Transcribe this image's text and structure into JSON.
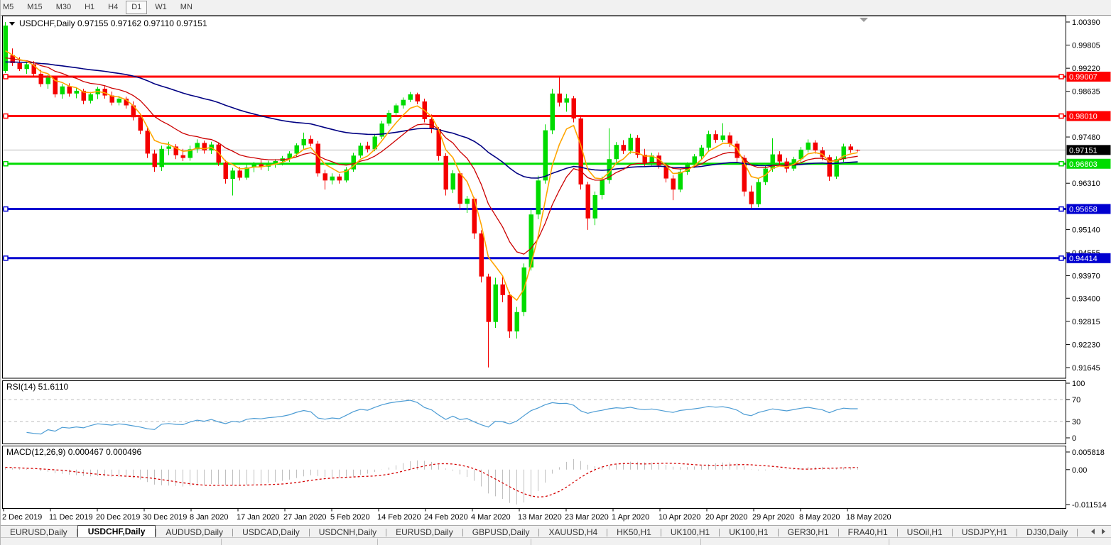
{
  "toolbar": {
    "timeframes": [
      "M5",
      "M15",
      "M30",
      "H1",
      "H4",
      "D1",
      "W1",
      "MN"
    ],
    "active_timeframe": "D1"
  },
  "chart": {
    "title_symbol": "USDCHF,Daily",
    "title_text": "USDCHF,Daily  0.97155 0.97162 0.97110 0.97151",
    "ohlc": {
      "open": "0.97155",
      "high": "0.97162",
      "low": "0.97110",
      "close": "0.97151"
    },
    "current_price": {
      "value": 0.97151,
      "label": "0.97151",
      "tag_color": "#000000",
      "line_color": "#b9b9b9"
    },
    "price_axis_labels": [
      {
        "v": 1.0039,
        "t": "1.00390"
      },
      {
        "v": 0.99805,
        "t": "0.99805"
      },
      {
        "v": 0.9922,
        "t": "0.99220"
      },
      {
        "v": 0.98635,
        "t": "0.98635"
      },
      {
        "v": 0.9748,
        "t": "0.97480"
      },
      {
        "v": 0.9631,
        "t": "0.96310"
      },
      {
        "v": 0.9514,
        "t": "0.95140"
      },
      {
        "v": 0.94555,
        "t": "0.94555"
      },
      {
        "v": 0.9397,
        "t": "0.93970"
      },
      {
        "v": 0.934,
        "t": "0.93400"
      },
      {
        "v": 0.92815,
        "t": "0.92815"
      },
      {
        "v": 0.9223,
        "t": "0.92230"
      },
      {
        "v": 0.91645,
        "t": "0.91645"
      }
    ],
    "hlines": [
      {
        "price": 0.99007,
        "label": "0.99007",
        "color": "#ff0000"
      },
      {
        "price": 0.9801,
        "label": "0.98010",
        "color": "#ff0000"
      },
      {
        "price": 0.96803,
        "label": "0.96803",
        "color": "#00dc00"
      },
      {
        "price": 0.95658,
        "label": "0.95658",
        "color": "#0000d0"
      },
      {
        "price": 0.94414,
        "label": "0.94414",
        "color": "#0000d0"
      }
    ],
    "date_labels": [
      "2 Dec 2019",
      "11 Dec 2019",
      "20 Dec 2019",
      "30 Dec 2019",
      "8 Jan 2020",
      "17 Jan 2020",
      "27 Jan 2020",
      "5 Feb 2020",
      "14 Feb 2020",
      "24 Feb 2020",
      "4 Mar 2020",
      "13 Mar 2020",
      "23 Mar 2020",
      "1 Apr 2020",
      "10 Apr 2020",
      "20 Apr 2020",
      "29 Apr 2020",
      "8 May 2020",
      "18 May 2020"
    ]
  },
  "rsi_panel": {
    "title": "RSI(14) 51.6110",
    "name": "RSI",
    "period": 14,
    "value": "51.6110",
    "axis_labels": [
      {
        "v": 100,
        "t": "100"
      },
      {
        "v": 70,
        "t": "70"
      },
      {
        "v": 30,
        "t": "30"
      },
      {
        "v": 0,
        "t": "0"
      }
    ],
    "levels": [
      70,
      30
    ],
    "line_color": "#4c9cd4"
  },
  "macd_panel": {
    "title": "MACD(12,26,9) 0.000467 0.000496",
    "macd_value": "0.000467",
    "signal_value": "0.000496",
    "axis_labels": [
      {
        "v": 0.005818,
        "t": "0.005818"
      },
      {
        "v": 0,
        "t": "0.00"
      },
      {
        "v": -0.011514,
        "t": "-0.011514"
      }
    ],
    "histogram_color": "#c0c0c0",
    "signal_color": "#d40000"
  },
  "tabs": {
    "items": [
      "EURUSD,Daily",
      "USDCHF,Daily",
      "AUDUSD,Daily",
      "USDCAD,Daily",
      "USDCNH,Daily",
      "EURUSD,Daily",
      "GBPUSD,Daily",
      "XAUUSD,H4",
      "HK50,H1",
      "UK100,H1",
      "UK100,H1",
      "GER30,H1",
      "FRA40,H1",
      "USOil,H1",
      "USDJPY,H1",
      "DJ30,Daily"
    ],
    "active_index": 1
  },
  "chart_data": {
    "type": "candlestick",
    "symbol": "USDCHF",
    "timeframe": "Daily",
    "up_color": "#00db00",
    "down_color": "#f40000",
    "moving_averages": [
      {
        "name": "fast",
        "period": 5,
        "color": "#ffa500"
      },
      {
        "name": "medium",
        "period": 13,
        "color": "#cc0000"
      },
      {
        "name": "slow",
        "period": 55,
        "color": "#000082"
      }
    ],
    "candles": [
      [
        0.9915,
        1.0039,
        0.991,
        1.003
      ],
      [
        0.9955,
        0.9972,
        0.9928,
        0.9935
      ],
      [
        0.9935,
        0.995,
        0.9915,
        0.992
      ],
      [
        0.992,
        0.9938,
        0.9908,
        0.9932
      ],
      [
        0.9932,
        0.994,
        0.99,
        0.9908
      ],
      [
        0.9908,
        0.9918,
        0.9875,
        0.9882
      ],
      [
        0.9882,
        0.9905,
        0.987,
        0.9898
      ],
      [
        0.9898,
        0.9902,
        0.9848,
        0.9856
      ],
      [
        0.9856,
        0.9882,
        0.9845,
        0.9876
      ],
      [
        0.9876,
        0.9884,
        0.985,
        0.9858
      ],
      [
        0.9858,
        0.9874,
        0.9846,
        0.9865
      ],
      [
        0.9865,
        0.987,
        0.9831,
        0.984
      ],
      [
        0.984,
        0.9862,
        0.9833,
        0.9856
      ],
      [
        0.9856,
        0.9875,
        0.9844,
        0.987
      ],
      [
        0.987,
        0.9878,
        0.9845,
        0.9853
      ],
      [
        0.9853,
        0.9863,
        0.9828,
        0.9835
      ],
      [
        0.9835,
        0.9852,
        0.9828,
        0.9845
      ],
      [
        0.9845,
        0.985,
        0.982,
        0.9828
      ],
      [
        0.9828,
        0.9838,
        0.979,
        0.9798
      ],
      [
        0.9798,
        0.9805,
        0.9755,
        0.9764
      ],
      [
        0.9764,
        0.9772,
        0.9695,
        0.9706
      ],
      [
        0.9706,
        0.9716,
        0.966,
        0.9672
      ],
      [
        0.9672,
        0.9726,
        0.9662,
        0.9718
      ],
      [
        0.9718,
        0.9736,
        0.9702,
        0.9724
      ],
      [
        0.9724,
        0.973,
        0.9692,
        0.9702
      ],
      [
        0.9702,
        0.9718,
        0.9687,
        0.9695
      ],
      [
        0.9695,
        0.9726,
        0.9688,
        0.9717
      ],
      [
        0.9717,
        0.9742,
        0.9708,
        0.9733
      ],
      [
        0.9733,
        0.9739,
        0.9706,
        0.9714
      ],
      [
        0.9714,
        0.9736,
        0.9705,
        0.9729
      ],
      [
        0.9729,
        0.9732,
        0.9675,
        0.9683
      ],
      [
        0.9683,
        0.969,
        0.963,
        0.9642
      ],
      [
        0.9642,
        0.967,
        0.96,
        0.9663
      ],
      [
        0.9663,
        0.9672,
        0.9638,
        0.9645
      ],
      [
        0.9645,
        0.9678,
        0.964,
        0.9671
      ],
      [
        0.9671,
        0.9685,
        0.9659,
        0.9679
      ],
      [
        0.9679,
        0.969,
        0.9665,
        0.9673
      ],
      [
        0.9673,
        0.9688,
        0.9662,
        0.9682
      ],
      [
        0.9682,
        0.9692,
        0.967,
        0.9687
      ],
      [
        0.9687,
        0.97,
        0.9676,
        0.9694
      ],
      [
        0.9694,
        0.9712,
        0.9685,
        0.9706
      ],
      [
        0.9706,
        0.9732,
        0.9698,
        0.9727
      ],
      [
        0.9727,
        0.9759,
        0.9718,
        0.9743
      ],
      [
        0.9743,
        0.9752,
        0.9724,
        0.9731
      ],
      [
        0.9731,
        0.9738,
        0.9648,
        0.9656
      ],
      [
        0.9656,
        0.9665,
        0.9615,
        0.9638
      ],
      [
        0.9638,
        0.9656,
        0.9628,
        0.9648
      ],
      [
        0.9648,
        0.9655,
        0.963,
        0.9638
      ],
      [
        0.9638,
        0.9672,
        0.9633,
        0.9666
      ],
      [
        0.9666,
        0.9708,
        0.966,
        0.9701
      ],
      [
        0.9701,
        0.9733,
        0.9695,
        0.9726
      ],
      [
        0.9726,
        0.9736,
        0.9709,
        0.9717
      ],
      [
        0.9717,
        0.9756,
        0.9712,
        0.9749
      ],
      [
        0.9749,
        0.9789,
        0.9743,
        0.9782
      ],
      [
        0.9782,
        0.9816,
        0.9776,
        0.9809
      ],
      [
        0.9809,
        0.9833,
        0.9802,
        0.9828
      ],
      [
        0.9828,
        0.9848,
        0.982,
        0.9842
      ],
      [
        0.9842,
        0.9862,
        0.9836,
        0.9856
      ],
      [
        0.9856,
        0.986,
        0.9831,
        0.9838
      ],
      [
        0.9838,
        0.9845,
        0.9785,
        0.9793
      ],
      [
        0.9793,
        0.9805,
        0.9758,
        0.9768
      ],
      [
        0.9768,
        0.9773,
        0.9688,
        0.97
      ],
      [
        0.97,
        0.9707,
        0.96,
        0.9615
      ],
      [
        0.9615,
        0.9664,
        0.9606,
        0.9656
      ],
      [
        0.9656,
        0.9661,
        0.9564,
        0.9579
      ],
      [
        0.9579,
        0.9599,
        0.9556,
        0.9592
      ],
      [
        0.9592,
        0.9596,
        0.949,
        0.9504
      ],
      [
        0.9504,
        0.9512,
        0.938,
        0.9395
      ],
      [
        0.9395,
        0.9402,
        0.9165,
        0.928
      ],
      [
        0.928,
        0.9392,
        0.9265,
        0.9375
      ],
      [
        0.9375,
        0.9398,
        0.933,
        0.9348
      ],
      [
        0.9348,
        0.9356,
        0.924,
        0.9256
      ],
      [
        0.9256,
        0.9318,
        0.9238,
        0.9305
      ],
      [
        0.9305,
        0.9428,
        0.9295,
        0.9418
      ],
      [
        0.9418,
        0.9565,
        0.941,
        0.9552
      ],
      [
        0.9552,
        0.965,
        0.954,
        0.9638
      ],
      [
        0.9638,
        0.978,
        0.963,
        0.9765
      ],
      [
        0.9765,
        0.987,
        0.9755,
        0.9858
      ],
      [
        0.9858,
        0.9901,
        0.9825,
        0.9835
      ],
      [
        0.9835,
        0.9857,
        0.9812,
        0.9846
      ],
      [
        0.9846,
        0.9852,
        0.9785,
        0.9795
      ],
      [
        0.9795,
        0.9801,
        0.9615,
        0.9628
      ],
      [
        0.9628,
        0.9635,
        0.9513,
        0.9542
      ],
      [
        0.9542,
        0.961,
        0.9525,
        0.9601
      ],
      [
        0.9601,
        0.9648,
        0.959,
        0.9639
      ],
      [
        0.9639,
        0.977,
        0.963,
        0.9692
      ],
      [
        0.9692,
        0.9735,
        0.9683,
        0.9728
      ],
      [
        0.9728,
        0.974,
        0.9705,
        0.9713
      ],
      [
        0.9713,
        0.9756,
        0.9706,
        0.9746
      ],
      [
        0.9746,
        0.9753,
        0.9695,
        0.9703
      ],
      [
        0.9703,
        0.9718,
        0.9675,
        0.9683
      ],
      [
        0.9683,
        0.9708,
        0.9676,
        0.9701
      ],
      [
        0.9701,
        0.9709,
        0.9668,
        0.9676
      ],
      [
        0.9676,
        0.9683,
        0.9633,
        0.9643
      ],
      [
        0.9643,
        0.9651,
        0.9588,
        0.9615
      ],
      [
        0.9615,
        0.9668,
        0.9608,
        0.966
      ],
      [
        0.966,
        0.9684,
        0.9652,
        0.9678
      ],
      [
        0.9678,
        0.9705,
        0.967,
        0.9699
      ],
      [
        0.9699,
        0.9728,
        0.9692,
        0.9721
      ],
      [
        0.9721,
        0.9764,
        0.9713,
        0.9755
      ],
      [
        0.9755,
        0.9765,
        0.9733,
        0.9741
      ],
      [
        0.9741,
        0.9783,
        0.9735,
        0.9752
      ],
      [
        0.9752,
        0.976,
        0.9723,
        0.9731
      ],
      [
        0.9731,
        0.9738,
        0.9685,
        0.9695
      ],
      [
        0.9695,
        0.9702,
        0.9598,
        0.961
      ],
      [
        0.961,
        0.9625,
        0.9568,
        0.9578
      ],
      [
        0.9578,
        0.9642,
        0.957,
        0.9634
      ],
      [
        0.9634,
        0.9675,
        0.9626,
        0.9668
      ],
      [
        0.9668,
        0.9745,
        0.966,
        0.9704
      ],
      [
        0.9704,
        0.9712,
        0.9678,
        0.9686
      ],
      [
        0.9686,
        0.9695,
        0.9658,
        0.9668
      ],
      [
        0.9668,
        0.9698,
        0.9662,
        0.9692
      ],
      [
        0.9692,
        0.9723,
        0.9685,
        0.9716
      ],
      [
        0.9716,
        0.9742,
        0.9709,
        0.9734
      ],
      [
        0.9734,
        0.974,
        0.9706,
        0.9714
      ],
      [
        0.9714,
        0.9723,
        0.9689,
        0.9697
      ],
      [
        0.9697,
        0.9703,
        0.9637,
        0.9648
      ],
      [
        0.9648,
        0.9699,
        0.9642,
        0.9692
      ],
      [
        0.9692,
        0.9731,
        0.9685,
        0.9724
      ],
      [
        0.9724,
        0.973,
        0.9708,
        0.97155
      ],
      [
        0.97155,
        0.97162,
        0.9711,
        0.97151
      ]
    ],
    "x_labels": [
      "2 Dec 2019",
      "11 Dec 2019",
      "20 Dec 2019",
      "30 Dec 2019",
      "8 Jan 2020",
      "17 Jan 2020",
      "27 Jan 2020",
      "5 Feb 2020",
      "14 Feb 2020",
      "24 Feb 2020",
      "4 Mar 2020",
      "13 Mar 2020",
      "23 Mar 2020",
      "1 Apr 2020",
      "10 Apr 2020",
      "20 Apr 2020",
      "29 Apr 2020",
      "8 May 2020",
      "18 May 2020"
    ],
    "indicators": [
      {
        "type": "RSI",
        "period": 14,
        "current": 51.611,
        "levels": [
          70,
          30
        ]
      },
      {
        "type": "MACD",
        "fast": 12,
        "slow": 26,
        "signal": 9,
        "current_macd": 0.000467,
        "current_signal": 0.000496
      }
    ]
  }
}
